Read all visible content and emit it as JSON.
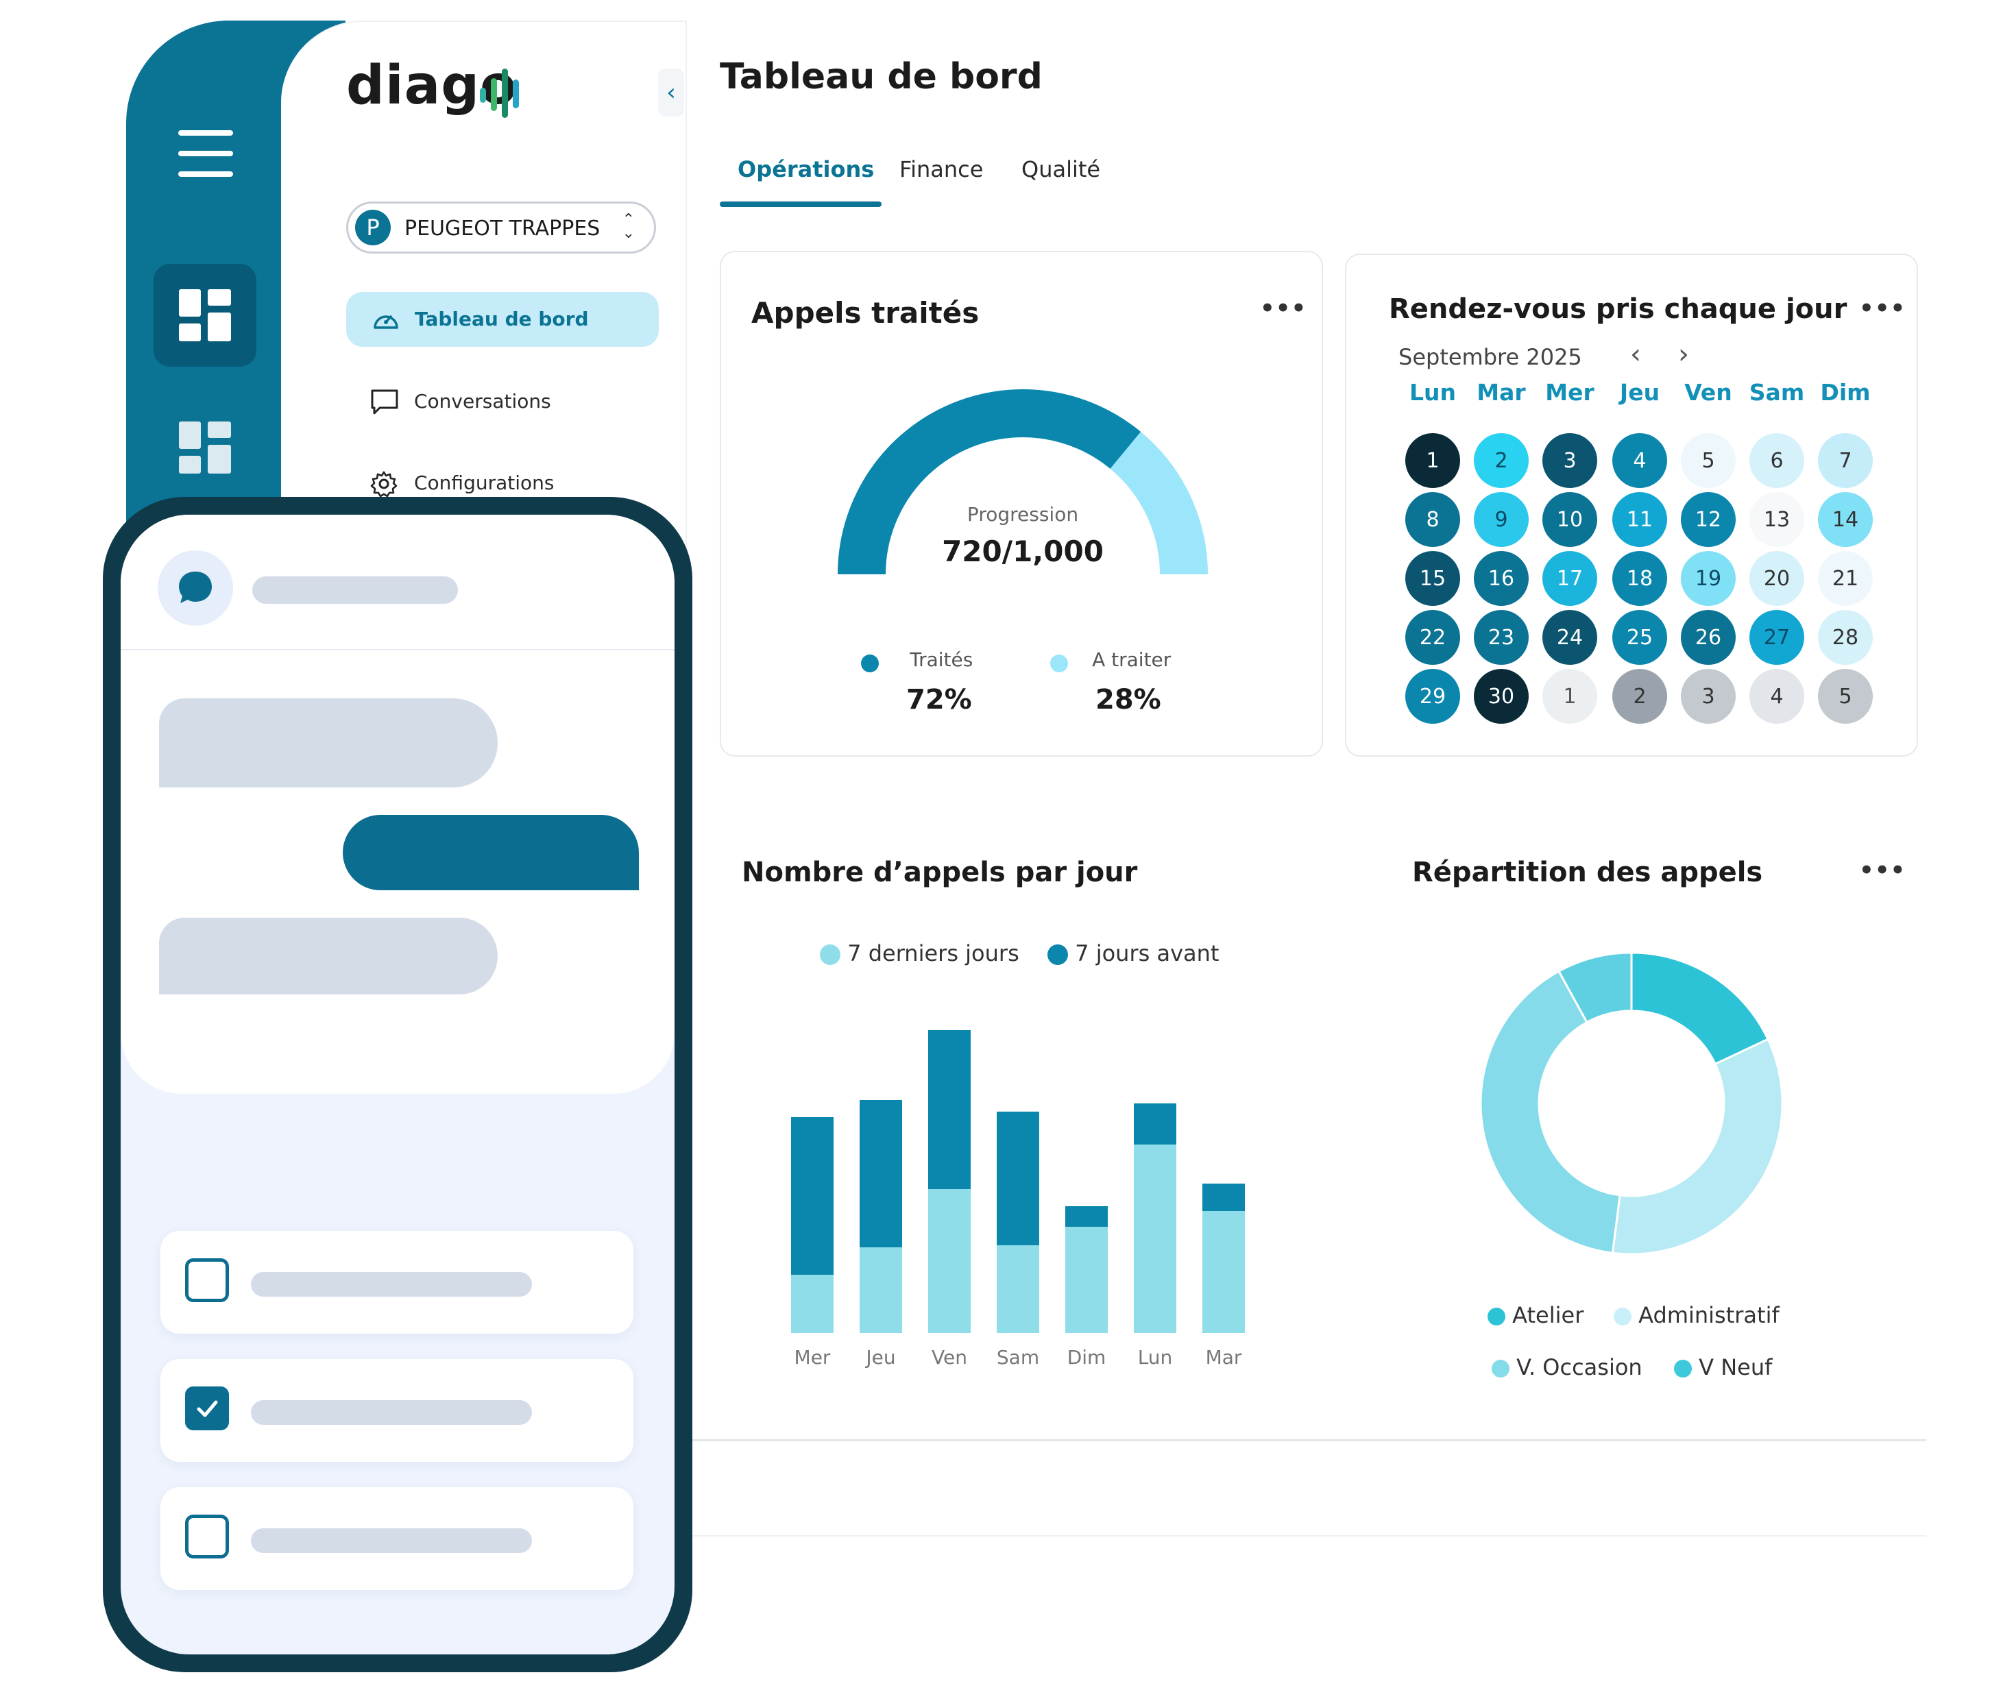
{
  "sidebar": {
    "logo_text": "diago",
    "collapse_icon": "chevron-left-icon",
    "dealer": {
      "initial": "P",
      "name": "PEUGEOT TRAPPES"
    },
    "nav": [
      {
        "label": "Tableau de bord",
        "icon": "dashboard-icon",
        "active": true
      },
      {
        "label": "Conversations",
        "icon": "chat-icon",
        "active": false
      },
      {
        "label": "Configurations",
        "icon": "gear-icon",
        "active": false
      }
    ]
  },
  "header": {
    "title": "Tableau de bord",
    "tabs": [
      {
        "label": "Opérations",
        "active": true
      },
      {
        "label": "Finance",
        "active": false
      },
      {
        "label": "Qualité",
        "active": false
      }
    ]
  },
  "calls_handled": {
    "title": "Appels traités",
    "gauge_caption": "Progression",
    "gauge_value": "720/1,000",
    "progress_fraction": 0.72,
    "legend": [
      {
        "label": "Traités",
        "value": "72%",
        "color": "#0b86ad"
      },
      {
        "label": "A traiter",
        "value": "28%",
        "color": "#9be6fb"
      }
    ]
  },
  "calendar": {
    "title": "Rendez-vous pris chaque jour",
    "month": "Septembre 2025",
    "weekdays": [
      "Lun",
      "Mar",
      "Mer",
      "Jeu",
      "Ven",
      "Sam",
      "Dim"
    ],
    "days": [
      {
        "d": "1",
        "bg": "#0a2a38",
        "fg": "#ffffff"
      },
      {
        "d": "2",
        "bg": "#28d2f0",
        "fg": "#0b4a66"
      },
      {
        "d": "3",
        "bg": "#0b5570",
        "fg": "#ffffff"
      },
      {
        "d": "4",
        "bg": "#0b86ad",
        "fg": "#ffffff"
      },
      {
        "d": "5",
        "bg": "#eef8fc",
        "fg": "#333333"
      },
      {
        "d": "6",
        "bg": "#d5f2fb",
        "fg": "#333333"
      },
      {
        "d": "7",
        "bg": "#c4ecf9",
        "fg": "#333333"
      },
      {
        "d": "8",
        "bg": "#0b7394",
        "fg": "#ffffff"
      },
      {
        "d": "9",
        "bg": "#2cc8ec",
        "fg": "#0b4a66"
      },
      {
        "d": "10",
        "bg": "#0b7394",
        "fg": "#ffffff"
      },
      {
        "d": "11",
        "bg": "#12a7d2",
        "fg": "#ffffff"
      },
      {
        "d": "12",
        "bg": "#0b86ad",
        "fg": "#ffffff"
      },
      {
        "d": "13",
        "bg": "#f6f8fa",
        "fg": "#333333"
      },
      {
        "d": "14",
        "bg": "#7fe0f6",
        "fg": "#333333"
      },
      {
        "d": "15",
        "bg": "#0b5570",
        "fg": "#ffffff"
      },
      {
        "d": "16",
        "bg": "#0b7394",
        "fg": "#ffffff"
      },
      {
        "d": "17",
        "bg": "#1ab4dc",
        "fg": "#ffffff"
      },
      {
        "d": "18",
        "bg": "#0b86ad",
        "fg": "#ffffff"
      },
      {
        "d": "19",
        "bg": "#7fe0f6",
        "fg": "#0b4a66"
      },
      {
        "d": "20",
        "bg": "#d5f2fb",
        "fg": "#333333"
      },
      {
        "d": "21",
        "bg": "#eef8fc",
        "fg": "#333333"
      },
      {
        "d": "22",
        "bg": "#0b7394",
        "fg": "#ffffff"
      },
      {
        "d": "23",
        "bg": "#0b7394",
        "fg": "#ffffff"
      },
      {
        "d": "24",
        "bg": "#0b5570",
        "fg": "#ffffff"
      },
      {
        "d": "25",
        "bg": "#0b86ad",
        "fg": "#ffffff"
      },
      {
        "d": "26",
        "bg": "#0b7394",
        "fg": "#ffffff"
      },
      {
        "d": "27",
        "bg": "#12a7d2",
        "fg": "#0b4a66"
      },
      {
        "d": "28",
        "bg": "#d5f2fb",
        "fg": "#333333"
      },
      {
        "d": "29",
        "bg": "#0b86ad",
        "fg": "#ffffff"
      },
      {
        "d": "30",
        "bg": "#0a2a38",
        "fg": "#ffffff"
      },
      {
        "d": "1",
        "bg": "#eceff2",
        "fg": "#555555"
      },
      {
        "d": "2",
        "bg": "#9aa3ad",
        "fg": "#333333"
      },
      {
        "d": "3",
        "bg": "#c4c9cf",
        "fg": "#333333"
      },
      {
        "d": "4",
        "bg": "#e2e5e9",
        "fg": "#333333"
      },
      {
        "d": "5",
        "bg": "#c4c9cf",
        "fg": "#333333"
      }
    ]
  },
  "calls_per_day": {
    "title": "Nombre d’appels par jour",
    "legend": [
      {
        "label": "7 derniers jours",
        "color": "#8fdde9"
      },
      {
        "label": "7 jours avant",
        "color": "#0b86ad"
      }
    ]
  },
  "chart_data": [
    {
      "type": "bar",
      "stacked": true,
      "categories": [
        "Mer",
        "Jeu",
        "Ven",
        "Sam",
        "Dim",
        "Lun",
        "Mar"
      ],
      "series": [
        {
          "name": "7 derniers jours",
          "values": [
            85,
            125,
            210,
            128,
            155,
            275,
            178
          ]
        },
        {
          "name": "7 jours avant",
          "values": [
            230,
            215,
            232,
            195,
            30,
            60,
            40
          ]
        }
      ],
      "ylim": [
        0,
        450
      ],
      "grid": false,
      "legend_position": "top"
    },
    {
      "type": "pie",
      "title": "Répartition des appels",
      "donut": true,
      "labels": [
        "V Neuf",
        "Administratif",
        "Atelier",
        "V. Occasion"
      ],
      "values": [
        18,
        34,
        40,
        8
      ],
      "colors": [
        "#2cc3d6",
        "#b7eaf4",
        "#85dbe9",
        "#5fd0e2"
      ],
      "legend_position": "bottom"
    }
  ],
  "distribution": {
    "title": "Répartition des appels",
    "legend": [
      {
        "label": "Atelier",
        "color": "#2cc3d6"
      },
      {
        "label": "Administratif",
        "color": "#c9f0f8"
      },
      {
        "label": "V. Occasion",
        "color": "#85dbe9"
      },
      {
        "label": "V Neuf",
        "color": "#3ec8dc"
      }
    ]
  },
  "more_label": "•••"
}
